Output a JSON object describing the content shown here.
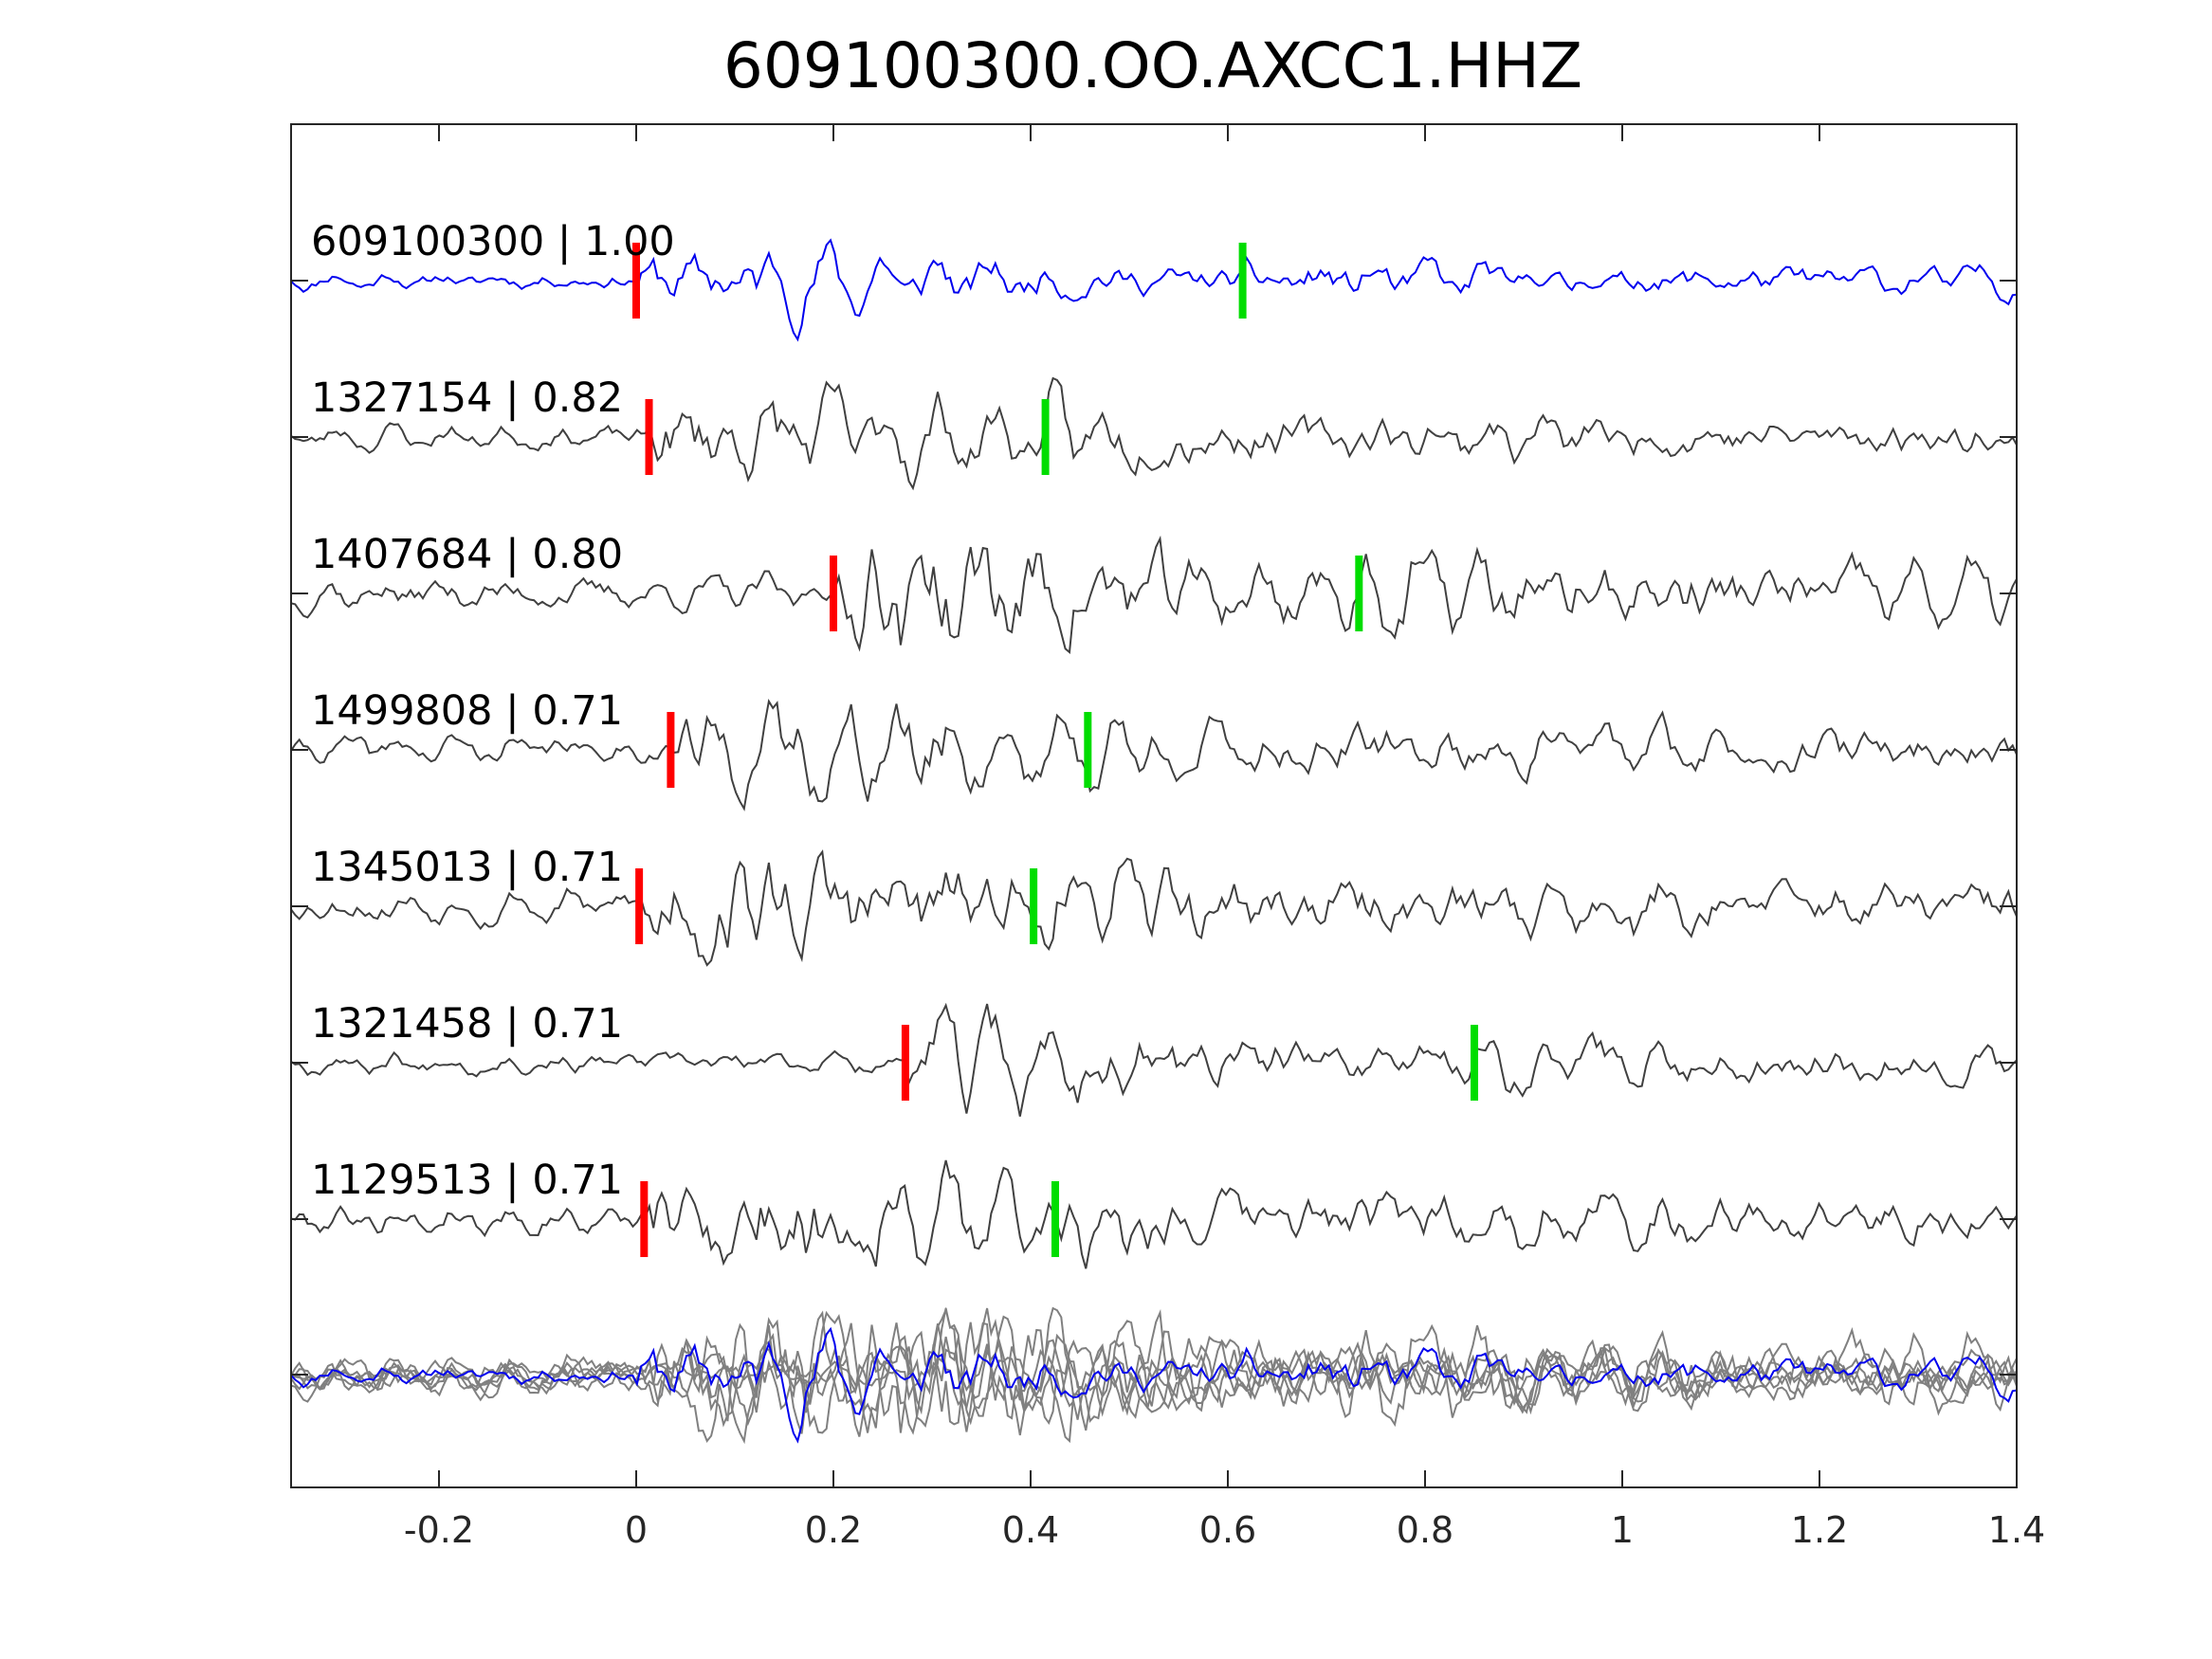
{
  "chart_data": {
    "type": "line",
    "title": "609100300.OO.AXCC1.HHZ",
    "xlabel": "",
    "ylabel": "",
    "xlim": [
      -0.35,
      1.4
    ],
    "x_ticks": [
      -0.2,
      0,
      0.2,
      0.4,
      0.6,
      0.8,
      1,
      1.2,
      1.4
    ],
    "x_tick_labels": [
      "-0.2",
      "0",
      "0.2",
      "0.4",
      "0.6",
      "0.8",
      "1",
      "1.2",
      "1.4"
    ],
    "grid": false,
    "stack_label": "",
    "colors": {
      "master": "#0000ee",
      "neighbor": "#404040",
      "stack_neighbor": "#808080",
      "p_pick": "#ff0000",
      "s_pick": "#00dd00",
      "axes": "#262626"
    },
    "series": [
      {
        "label": "609100300 | 1.00",
        "event_id": "609100300",
        "cc": "1.00",
        "role": "master",
        "p_pick": 0.0,
        "s_pick": 0.615,
        "seed": 11
      },
      {
        "label": "1327154 | 0.82",
        "event_id": "1327154",
        "cc": "0.82",
        "role": "neighbor",
        "p_pick": 0.013,
        "s_pick": 0.415,
        "seed": 23
      },
      {
        "label": "1407684 | 0.80",
        "event_id": "1407684",
        "cc": "0.80",
        "role": "neighbor",
        "p_pick": 0.2,
        "s_pick": 0.733,
        "seed": 37
      },
      {
        "label": "1499808 | 0.71",
        "event_id": "1499808",
        "cc": "0.71",
        "role": "neighbor",
        "p_pick": 0.035,
        "s_pick": 0.458,
        "seed": 41
      },
      {
        "label": "1345013 | 0.71",
        "event_id": "1345013",
        "cc": "0.71",
        "role": "neighbor",
        "p_pick": 0.003,
        "s_pick": 0.403,
        "seed": 53
      },
      {
        "label": "1321458 | 0.71",
        "event_id": "1321458",
        "cc": "0.71",
        "role": "neighbor",
        "p_pick": 0.273,
        "s_pick": 0.85,
        "seed": 67
      },
      {
        "label": "1129513 | 0.71",
        "event_id": "1129513",
        "cc": "0.71",
        "role": "neighbor",
        "p_pick": 0.008,
        "s_pick": 0.425,
        "seed": 79
      }
    ]
  }
}
